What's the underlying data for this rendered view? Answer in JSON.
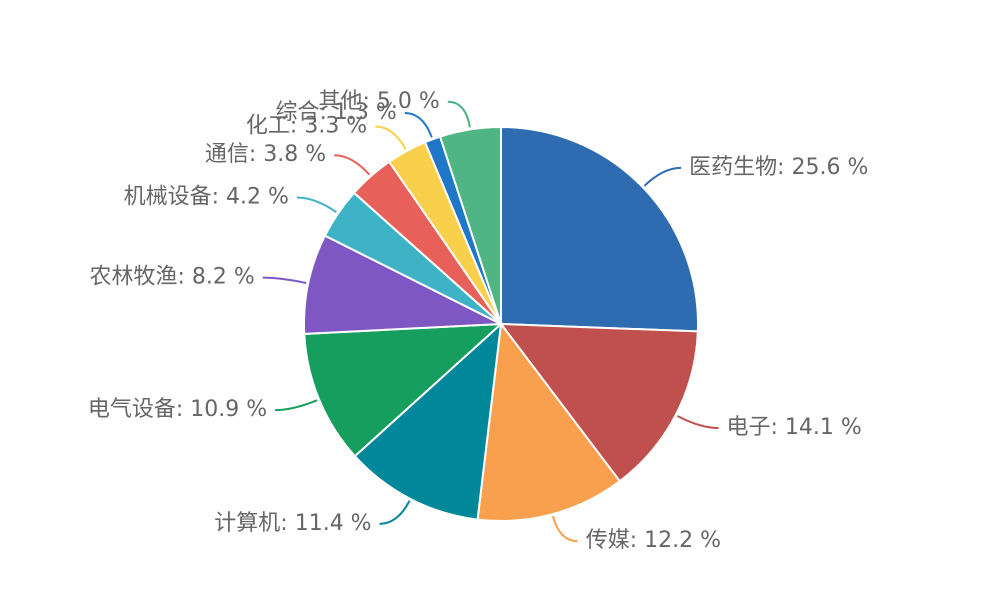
{
  "chart_data": {
    "type": "pie",
    "title": "",
    "separator": ": ",
    "unit": " %",
    "slices": [
      {
        "label": "医药生物",
        "value": 25.6,
        "color": "#2E6BB1"
      },
      {
        "label": "电子",
        "value": 14.1,
        "color": "#C0504D"
      },
      {
        "label": "传媒",
        "value": 12.2,
        "color": "#F9A04F"
      },
      {
        "label": "计算机",
        "value": 11.4,
        "color": "#00889A"
      },
      {
        "label": "电气设备",
        "value": 10.9,
        "color": "#169E5E"
      },
      {
        "label": "农林牧渔",
        "value": 8.2,
        "color": "#7E57C2"
      },
      {
        "label": "机械设备",
        "value": 4.2,
        "color": "#3FB3C6"
      },
      {
        "label": "通信",
        "value": 3.8,
        "color": "#E8605A"
      },
      {
        "label": "化工",
        "value": 3.3,
        "color": "#F9D04C"
      },
      {
        "label": "综合",
        "value": 1.3,
        "color": "#1F77C8"
      },
      {
        "label": "其他",
        "value": 5.0,
        "color": "#4FB585"
      }
    ]
  }
}
